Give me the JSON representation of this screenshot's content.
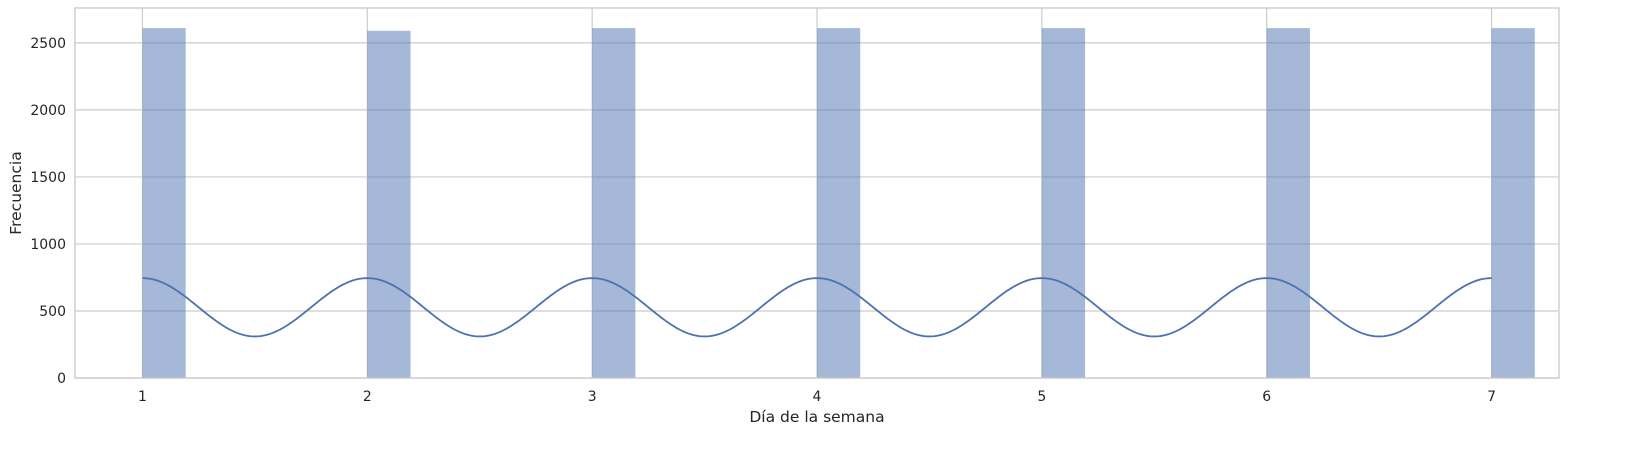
{
  "chart_data": {
    "type": "bar",
    "xlabel": "Día de la semana",
    "ylabel": "Frecuencia",
    "categories": [
      "1",
      "2",
      "3",
      "4",
      "5",
      "6",
      "7"
    ],
    "x": [
      1,
      2,
      3,
      4,
      5,
      6,
      7
    ],
    "values": [
      2610,
      2590,
      2610,
      2610,
      2610,
      2610,
      2610
    ],
    "bin_width": 0.1923,
    "kde": {
      "peak": 745,
      "trough": 310,
      "peaks_at": [
        1,
        2,
        3,
        4,
        5,
        6,
        7
      ],
      "troughs_at": [
        1.5,
        2.5,
        3.5,
        4.5,
        5.5,
        6.5
      ]
    },
    "x_ticks": [
      1,
      2,
      3,
      4,
      5,
      6,
      7
    ],
    "x_tick_labels": [
      "1",
      "2",
      "3",
      "4",
      "5",
      "6",
      "7"
    ],
    "y_ticks": [
      0,
      500,
      1000,
      1500,
      2000,
      2500
    ],
    "y_tick_labels": [
      "0",
      "500",
      "1000",
      "1500",
      "2000",
      "2500"
    ],
    "xlim": [
      0.7,
      7.3
    ],
    "ylim": [
      0,
      2760
    ],
    "grid": true,
    "color": "#4c72b0"
  }
}
